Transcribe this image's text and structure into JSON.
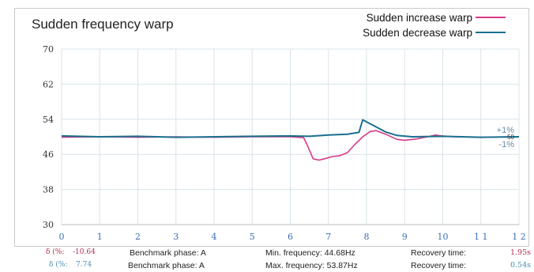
{
  "chart_data": {
    "type": "line",
    "title": "Sudden frequency warp",
    "xlim": [
      0,
      12
    ],
    "ylim": [
      30,
      70
    ],
    "x_ticks": [
      "0",
      "1",
      "2",
      "3",
      "4",
      "5",
      "6",
      "7",
      "8",
      "9",
      "10",
      "1 1",
      "1 2"
    ],
    "y_ticks": [
      "70",
      "62",
      "54",
      "46",
      "38",
      "30"
    ],
    "band_labels": {
      "upper": "+1%",
      "center": "50",
      "lower": "-1%"
    },
    "colors": {
      "increase": "#d63a86",
      "decrease": "#1a6f8f"
    },
    "series": [
      {
        "name": "Sudden increase warp",
        "points": [
          [
            0,
            49.9
          ],
          [
            1,
            50.0
          ],
          [
            2,
            49.9
          ],
          [
            3,
            50.0
          ],
          [
            4,
            49.9
          ],
          [
            5,
            50.0
          ],
          [
            6,
            50.0
          ],
          [
            6.35,
            49.8
          ],
          [
            6.45,
            48.0
          ],
          [
            6.6,
            45.0
          ],
          [
            6.75,
            44.68
          ],
          [
            6.9,
            45.0
          ],
          [
            7.1,
            45.5
          ],
          [
            7.3,
            45.7
          ],
          [
            7.5,
            46.4
          ],
          [
            7.7,
            48.3
          ],
          [
            7.9,
            50.0
          ],
          [
            8.1,
            51.2
          ],
          [
            8.25,
            51.4
          ],
          [
            8.5,
            50.6
          ],
          [
            8.8,
            49.4
          ],
          [
            9.0,
            49.2
          ],
          [
            9.3,
            49.5
          ],
          [
            9.6,
            50.0
          ],
          [
            9.8,
            50.4
          ],
          [
            10.0,
            50.2
          ],
          [
            10.3,
            50.0
          ],
          [
            11,
            49.9
          ],
          [
            12,
            50.0
          ]
        ]
      },
      {
        "name": "Sudden decrease warp",
        "points": [
          [
            0,
            50.2
          ],
          [
            1,
            50.0
          ],
          [
            2,
            50.1
          ],
          [
            3,
            49.9
          ],
          [
            4,
            50.0
          ],
          [
            5,
            50.1
          ],
          [
            6,
            50.2
          ],
          [
            6.5,
            50.1
          ],
          [
            7.0,
            50.4
          ],
          [
            7.5,
            50.6
          ],
          [
            7.8,
            51.0
          ],
          [
            7.9,
            53.87
          ],
          [
            8.0,
            53.4
          ],
          [
            8.2,
            52.5
          ],
          [
            8.5,
            51.1
          ],
          [
            8.8,
            50.3
          ],
          [
            9.2,
            50.0
          ],
          [
            10,
            50.1
          ],
          [
            11,
            49.9
          ],
          [
            12,
            50.0
          ]
        ]
      }
    ]
  },
  "stats": [
    {
      "delta_label": "δ (%:",
      "delta_value": "-10.64",
      "phase": "Benchmark phase: A",
      "freq": "Min. frequency: 44.68Hz",
      "recovery_label": "Recovery time:",
      "recovery_value": "1.95s"
    },
    {
      "delta_label": "δ (%:",
      "delta_value": "7.74",
      "phase": "Benchmark phase: A",
      "freq": "Max. frequency: 53.87Hz",
      "recovery_label": "Recovery time:",
      "recovery_value": "0.54s"
    }
  ]
}
